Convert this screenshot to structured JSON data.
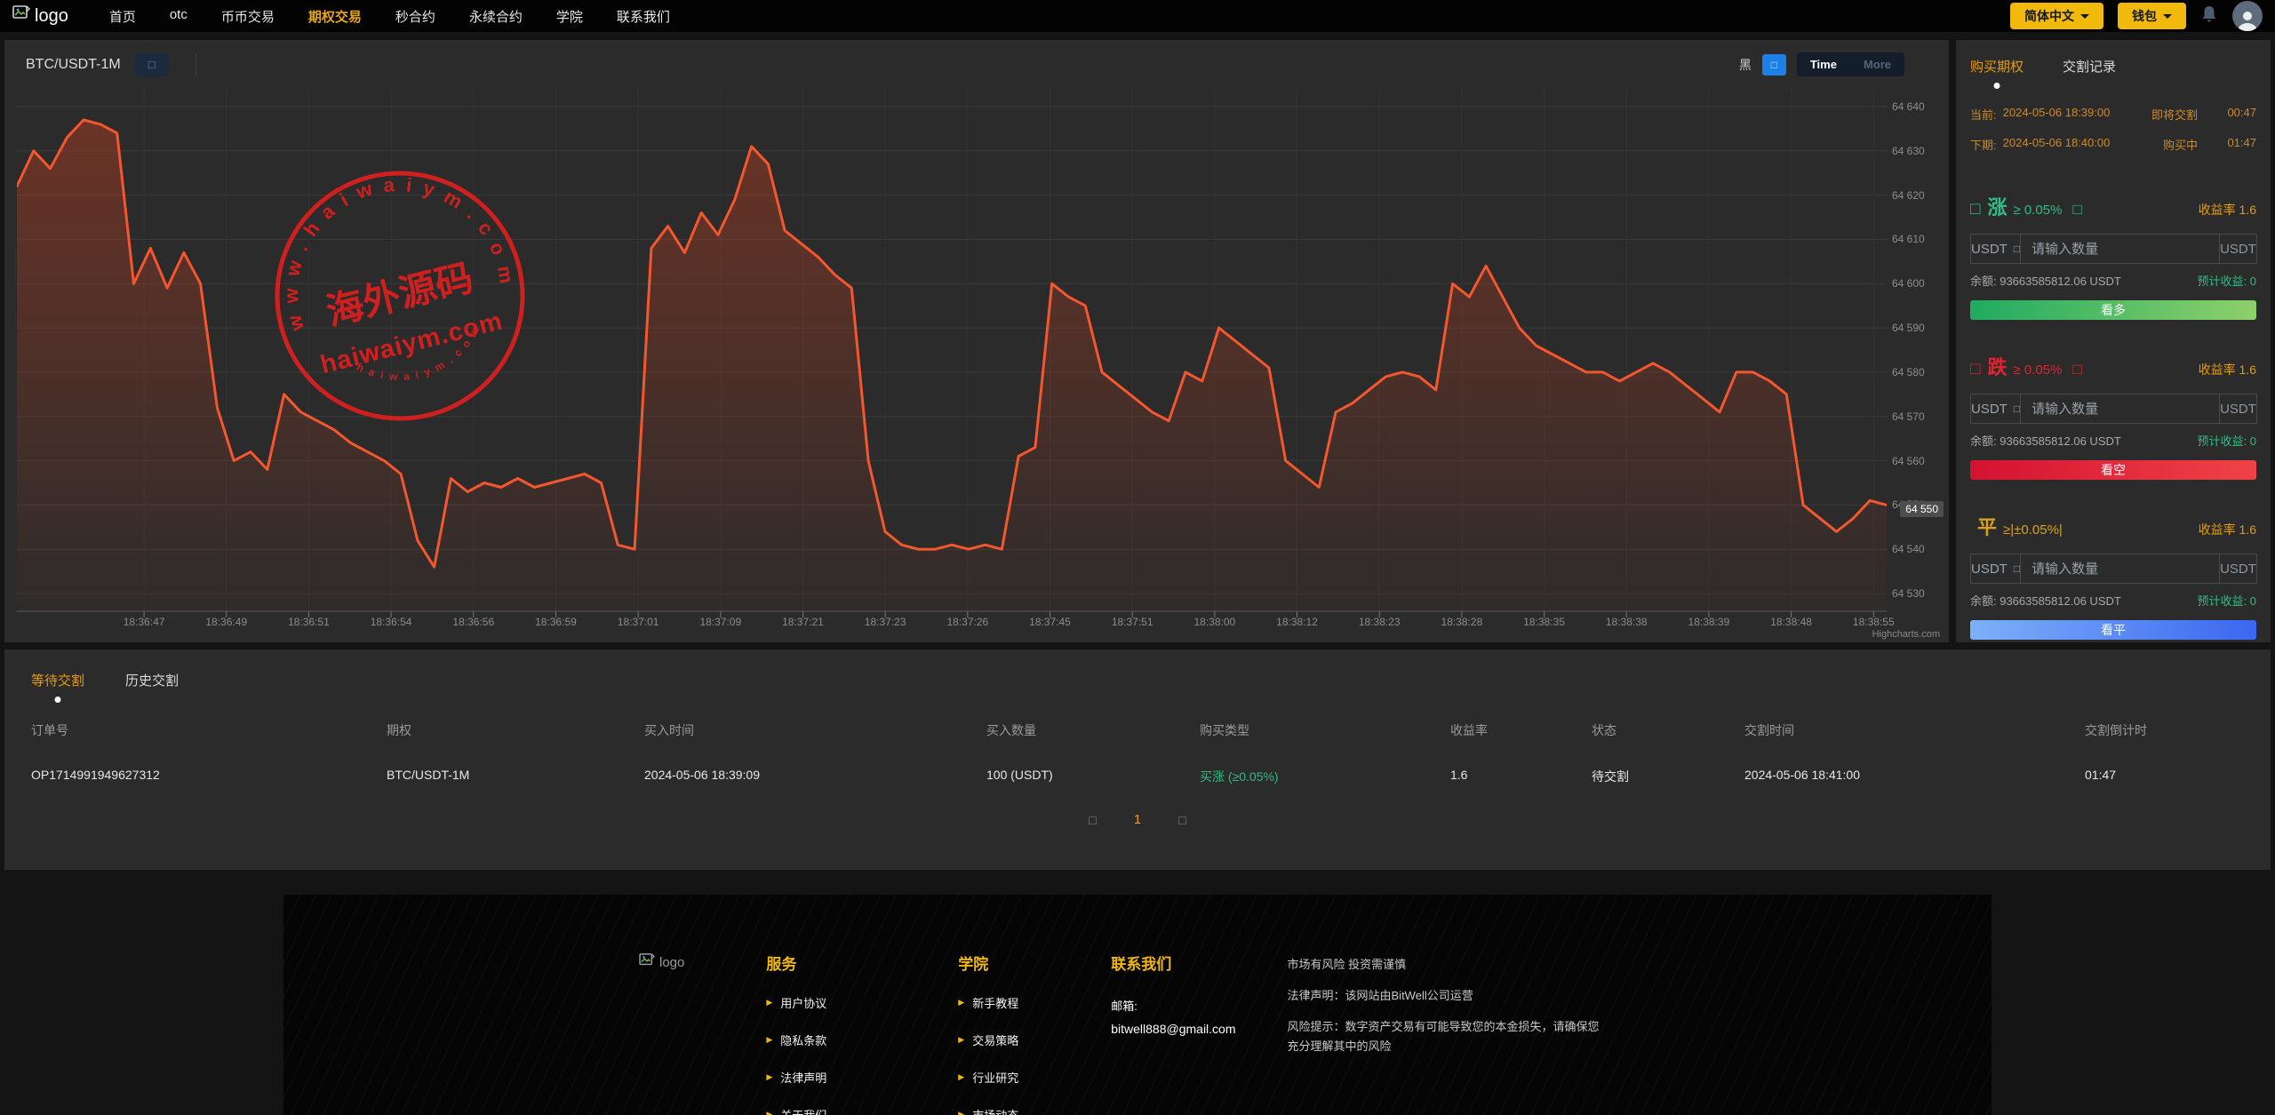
{
  "navbar": {
    "logo_alt": "logo",
    "items": [
      "首页",
      "otc",
      "币币交易",
      "期权交易",
      "秒合约",
      "永续合约",
      "学院",
      "联系我们"
    ],
    "active_item": "期权交易",
    "lang_button": "简体中文",
    "wallet_button": "钱包",
    "accent_color": "#F0B90B"
  },
  "chart_panel": {
    "symbol": "BTC/USDT-1M",
    "symbol_button_glyph": "□",
    "theme_label": "黑",
    "theme_button_glyph": "□",
    "range_tabs": [
      "Time",
      "More"
    ],
    "active_range": "Time",
    "credit": "Highcharts.com",
    "current_price_label": "64 550",
    "current_price": 64549
  },
  "chart_data": {
    "type": "line",
    "title": "",
    "xlabel": "",
    "ylabel": "",
    "x_tick_labels": [
      "18:36:47",
      "18:36:49",
      "18:36:51",
      "18:36:54",
      "18:36:56",
      "18:36:59",
      "18:37:01",
      "18:37:09",
      "18:37:21",
      "18:37:23",
      "18:37:26",
      "18:37:45",
      "18:37:51",
      "18:38:00",
      "18:38:12",
      "18:38:23",
      "18:38:28",
      "18:38:35",
      "18:38:38",
      "18:38:39",
      "18:38:48",
      "18:38:55"
    ],
    "ylim": [
      64530,
      64640
    ],
    "y_tick_interval": 10,
    "y_tick_labels": [
      "64 530",
      "64 540",
      "64 550",
      "64 560",
      "64 570",
      "64 580",
      "64 590",
      "64 600",
      "64 610",
      "64 620",
      "64 630",
      "64 640"
    ],
    "grid": true,
    "legend_position": "none",
    "series": [
      {
        "name": "BTC/USDT-1M",
        "color": "#f4572e",
        "values": [
          64622,
          64630,
          64626,
          64633,
          64637,
          64636,
          64634,
          64600,
          64608,
          64599,
          64607,
          64600,
          64572,
          64560,
          64562,
          64558,
          64575,
          64571,
          64569,
          64567,
          64564,
          64562,
          64560,
          64557,
          64542,
          64536,
          64556,
          64553,
          64555,
          64554,
          64556,
          64554,
          64555,
          64556,
          64557,
          64555,
          64541,
          64540,
          64608,
          64613,
          64607,
          64616,
          64611,
          64619,
          64631,
          64627,
          64612,
          64609,
          64606,
          64602,
          64599,
          64560,
          64544,
          64541,
          64540,
          64540,
          64541,
          64540,
          64541,
          64540,
          64561,
          64563,
          64600,
          64597,
          64595,
          64580,
          64577,
          64574,
          64571,
          64569,
          64580,
          64578,
          64590,
          64587,
          64584,
          64581,
          64560,
          64557,
          64554,
          64571,
          64573,
          64576,
          64579,
          64580,
          64579,
          64576,
          64600,
          64597,
          64604,
          64597,
          64590,
          64586,
          64584,
          64582,
          64580,
          64580,
          64578,
          64580,
          64582,
          64580,
          64577,
          64574,
          64571,
          64580,
          64580,
          64578,
          64575,
          64550,
          64547,
          64544,
          64547,
          64551,
          64550
        ]
      }
    ]
  },
  "watermark": {
    "arc_text_top": "w w w . h a i w a i y m . c o m",
    "center_text": "海外源码",
    "sub_text": "haiwaiym.com",
    "arc_text_bottom": "h a i w a i y m . c o m",
    "color": "#dd1f1f"
  },
  "trade_panel": {
    "tabs": [
      "购买期权",
      "交割记录"
    ],
    "active_tab": "购买期权",
    "period_rows": [
      {
        "label": "当前:",
        "time": "2024-05-06 18:39:00",
        "status": "即将交割",
        "countdown": "00:47"
      },
      {
        "label": "下期:",
        "time": "2024-05-06 18:40:00",
        "status": "购买中",
        "countdown": "01:47"
      }
    ],
    "sections": [
      {
        "key": "up",
        "title": "涨",
        "condition": "≥ 0.05%",
        "icon_glyph": "□",
        "icon_glyph2": "□",
        "rate_label": "收益率",
        "rate": "1.6",
        "unit": "USDT",
        "unit_caret_glyph": "□",
        "placeholder": "请输入数量",
        "suffix": "USDT",
        "balance_label": "余额:",
        "balance": "93663585812.06 USDT",
        "profit_label": "预计收益:",
        "profit": "0",
        "button": "看多",
        "color": "#2ebd85",
        "button_gradient": [
          "#1fab61",
          "#8ed06b"
        ]
      },
      {
        "key": "down",
        "title": "跌",
        "condition": "≥ 0.05%",
        "icon_glyph": "□",
        "icon_glyph2": "□",
        "rate_label": "收益率",
        "rate": "1.6",
        "unit": "USDT",
        "unit_caret_glyph": "□",
        "placeholder": "请输入数量",
        "suffix": "USDT",
        "balance_label": "余额:",
        "balance": "93663585812.06 USDT",
        "profit_label": "预计收益:",
        "profit": "0",
        "button": "看空",
        "color": "#e1242f",
        "button_gradient": [
          "#d41231",
          "#ef4348"
        ]
      },
      {
        "key": "flat",
        "title": "平",
        "condition": "≥|±0.05%|",
        "icon_glyph": "",
        "icon_glyph2": "",
        "rate_label": "收益率",
        "rate": "1.6",
        "unit": "USDT",
        "unit_caret_glyph": "□",
        "placeholder": "请输入数量",
        "suffix": "USDT",
        "balance_label": "余额:",
        "balance": "93663585812.06 USDT",
        "profit_label": "预计收益:",
        "profit": "0",
        "button": "看平",
        "color": "#d7a21d",
        "button_gradient": [
          "#7db0f8",
          "#3a67f0"
        ]
      }
    ]
  },
  "orders": {
    "tabs": [
      "等待交割",
      "历史交割"
    ],
    "active_tab": "等待交割",
    "columns": [
      "订单号",
      "期权",
      "买入时间",
      "买入数量",
      "购买类型",
      "收益率",
      "状态",
      "交割时间",
      "交割倒计时"
    ],
    "rows": [
      [
        "OP1714991949627312",
        "BTC/USDT-1M",
        "2024-05-06 18:39:09",
        "100 (USDT)",
        "买涨 (≥0.05%)",
        "1.6",
        "待交割",
        "2024-05-06 18:41:00",
        "01:47"
      ]
    ],
    "buy_type_color": "#2ebd85",
    "pagination": {
      "prev_glyph": "□",
      "page": "1",
      "next_glyph": "□"
    }
  },
  "footer": {
    "logo_alt": "logo",
    "columns": [
      {
        "title": "服务",
        "links": [
          "用户协议",
          "隐私条款",
          "法律声明",
          "关于我们"
        ]
      },
      {
        "title": "学院",
        "links": [
          "新手教程",
          "交易策略",
          "行业研究",
          "市场动态"
        ]
      }
    ],
    "contact": {
      "title": "联系我们",
      "email_label": "邮箱:",
      "email": "bitwell888@gmail.com"
    },
    "disclaimers": [
      "市场有风险 投资需谨慎",
      "法律声明：该网站由BitWell公司运营",
      "风险提示：数字资产交易有可能导致您的本金损失，请确保您充分理解其中的风险"
    ]
  }
}
